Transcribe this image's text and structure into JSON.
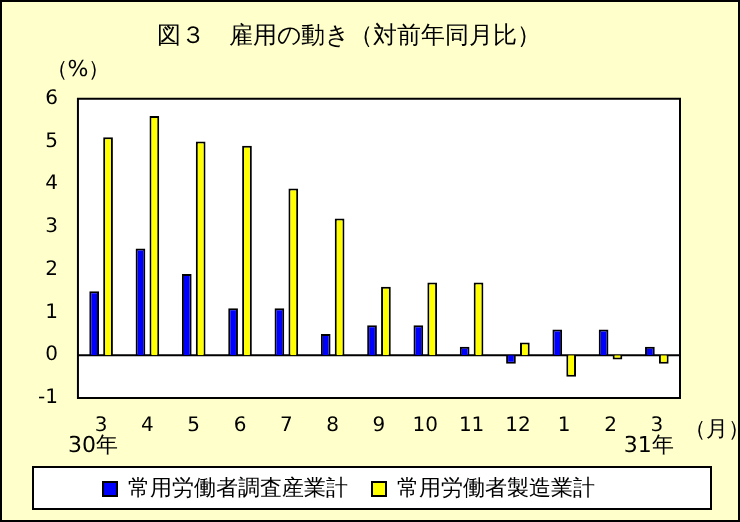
{
  "chart_data": {
    "type": "bar",
    "title": "図３　雇用の動き（対前年同月比）",
    "ylabel": "（%）",
    "categories": [
      "3",
      "4",
      "5",
      "6",
      "7",
      "8",
      "9",
      "10",
      "11",
      "12",
      "1",
      "2",
      "3"
    ],
    "series": [
      {
        "name": "常用労働者調査産業計",
        "color": "#0000ff",
        "values": [
          1.5,
          2.5,
          1.9,
          1.1,
          1.1,
          0.5,
          0.7,
          0.7,
          0.2,
          -0.2,
          0.6,
          0.6,
          0.2
        ]
      },
      {
        "name": "常用労働者製造業計",
        "color": "#ffff00",
        "values": [
          5.1,
          5.6,
          5.0,
          4.9,
          3.9,
          3.2,
          1.6,
          1.7,
          1.7,
          0.3,
          -0.5,
          -0.1,
          -0.2
        ]
      }
    ],
    "ylim": [
      -1,
      6
    ],
    "yticks": [
      -1,
      0,
      1,
      2,
      3,
      4,
      5,
      6
    ],
    "ref_lines": [
      {
        "axis": "y",
        "value": 0
      }
    ],
    "legend": "bottom",
    "annotations": [
      "30年",
      "31年",
      "（月）"
    ]
  }
}
